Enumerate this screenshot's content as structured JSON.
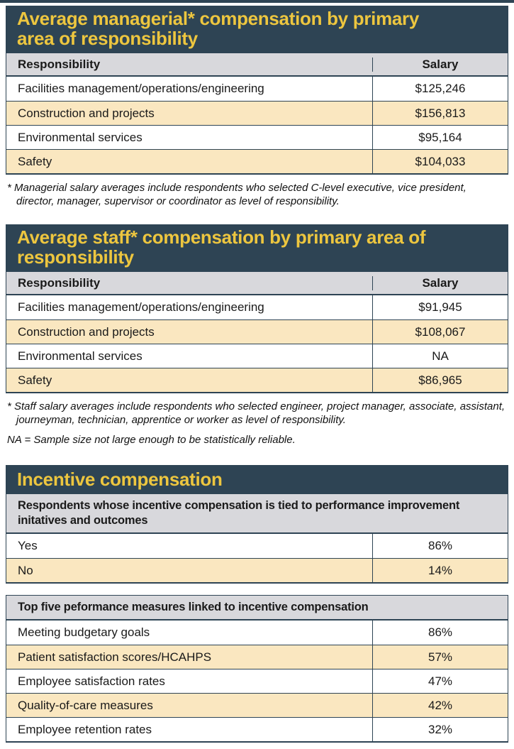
{
  "colors": {
    "band_background": "#2e4454",
    "band_title_text": "#edc63f",
    "header_row_background": "#d8d8dc",
    "alt_row_background": "#fae7c0",
    "border": "#2e4454",
    "body_text": "#1a1a1a"
  },
  "managerial_table": {
    "title": "Average managerial* compensation by primary area of responsibility",
    "columns": {
      "label": "Responsibility",
      "value": "Salary"
    },
    "rows": [
      {
        "label": "Facilities management/operations/engineering",
        "value": "$125,246"
      },
      {
        "label": "Construction and projects",
        "value": "$156,813"
      },
      {
        "label": "Environmental services",
        "value": "$95,164"
      },
      {
        "label": "Safety",
        "value": "$104,033"
      }
    ],
    "footnote": "* Managerial salary averages include respondents who selected C-level executive, vice president, director, manager, supervisor or coordinator as level of responsibility."
  },
  "staff_table": {
    "title": "Average staff* compensation by primary area of responsibility",
    "columns": {
      "label": "Responsibility",
      "value": "Salary"
    },
    "rows": [
      {
        "label": "Facilities management/operations/engineering",
        "value": "$91,945"
      },
      {
        "label": "Construction and projects",
        "value": "$108,067"
      },
      {
        "label": "Environmental services",
        "value": "NA"
      },
      {
        "label": "Safety",
        "value": "$86,965"
      }
    ],
    "footnote": "* Staff salary averages include respondents who selected engineer, project manager, associate, assistant, journeyman, technician, apprentice or worker as level of responsibility.",
    "na_note": "NA = Sample size not large enough to be statistically reliable."
  },
  "incentive_table": {
    "title": "Incentive compensation",
    "sections": [
      {
        "header": "Respondents whose incentive compensation is tied to performance improvement initatives and outcomes",
        "rows": [
          {
            "label": "Yes",
            "value": "86%"
          },
          {
            "label": "No",
            "value": "14%"
          }
        ]
      },
      {
        "header": "Top five peformance measures linked to incentive compensation",
        "rows": [
          {
            "label": "Meeting budgetary goals",
            "value": "86%"
          },
          {
            "label": "Patient satisfaction scores/HCAHPS",
            "value": "57%"
          },
          {
            "label": "Employee satisfaction rates",
            "value": "47%"
          },
          {
            "label": "Quality-of-care measures",
            "value": "42%"
          },
          {
            "label": "Employee retention rates",
            "value": "32%"
          }
        ]
      }
    ]
  },
  "chart_data": [
    {
      "type": "table",
      "title": "Average managerial* compensation by primary area of responsibility",
      "columns": [
        "Responsibility",
        "Salary"
      ],
      "rows": [
        [
          "Facilities management/operations/engineering",
          125246
        ],
        [
          "Construction and projects",
          156813
        ],
        [
          "Environmental services",
          95164
        ],
        [
          "Safety",
          104033
        ]
      ]
    },
    {
      "type": "table",
      "title": "Average staff* compensation by primary area of responsibility",
      "columns": [
        "Responsibility",
        "Salary"
      ],
      "rows": [
        [
          "Facilities management/operations/engineering",
          91945
        ],
        [
          "Construction and projects",
          108067
        ],
        [
          "Environmental services",
          null
        ],
        [
          "Safety",
          86965
        ]
      ]
    },
    {
      "type": "table",
      "title": "Incentive compensation",
      "sections": [
        {
          "header": "Respondents whose incentive compensation is tied to performance improvement initatives and outcomes",
          "rows": [
            [
              "Yes",
              86
            ],
            [
              "No",
              14
            ]
          ],
          "unit": "%"
        },
        {
          "header": "Top five peformance measures linked to incentive compensation",
          "rows": [
            [
              "Meeting budgetary goals",
              86
            ],
            [
              "Patient satisfaction scores/HCAHPS",
              57
            ],
            [
              "Employee satisfaction rates",
              47
            ],
            [
              "Quality-of-care measures",
              42
            ],
            [
              "Employee retention rates",
              32
            ]
          ],
          "unit": "%"
        }
      ]
    }
  ]
}
